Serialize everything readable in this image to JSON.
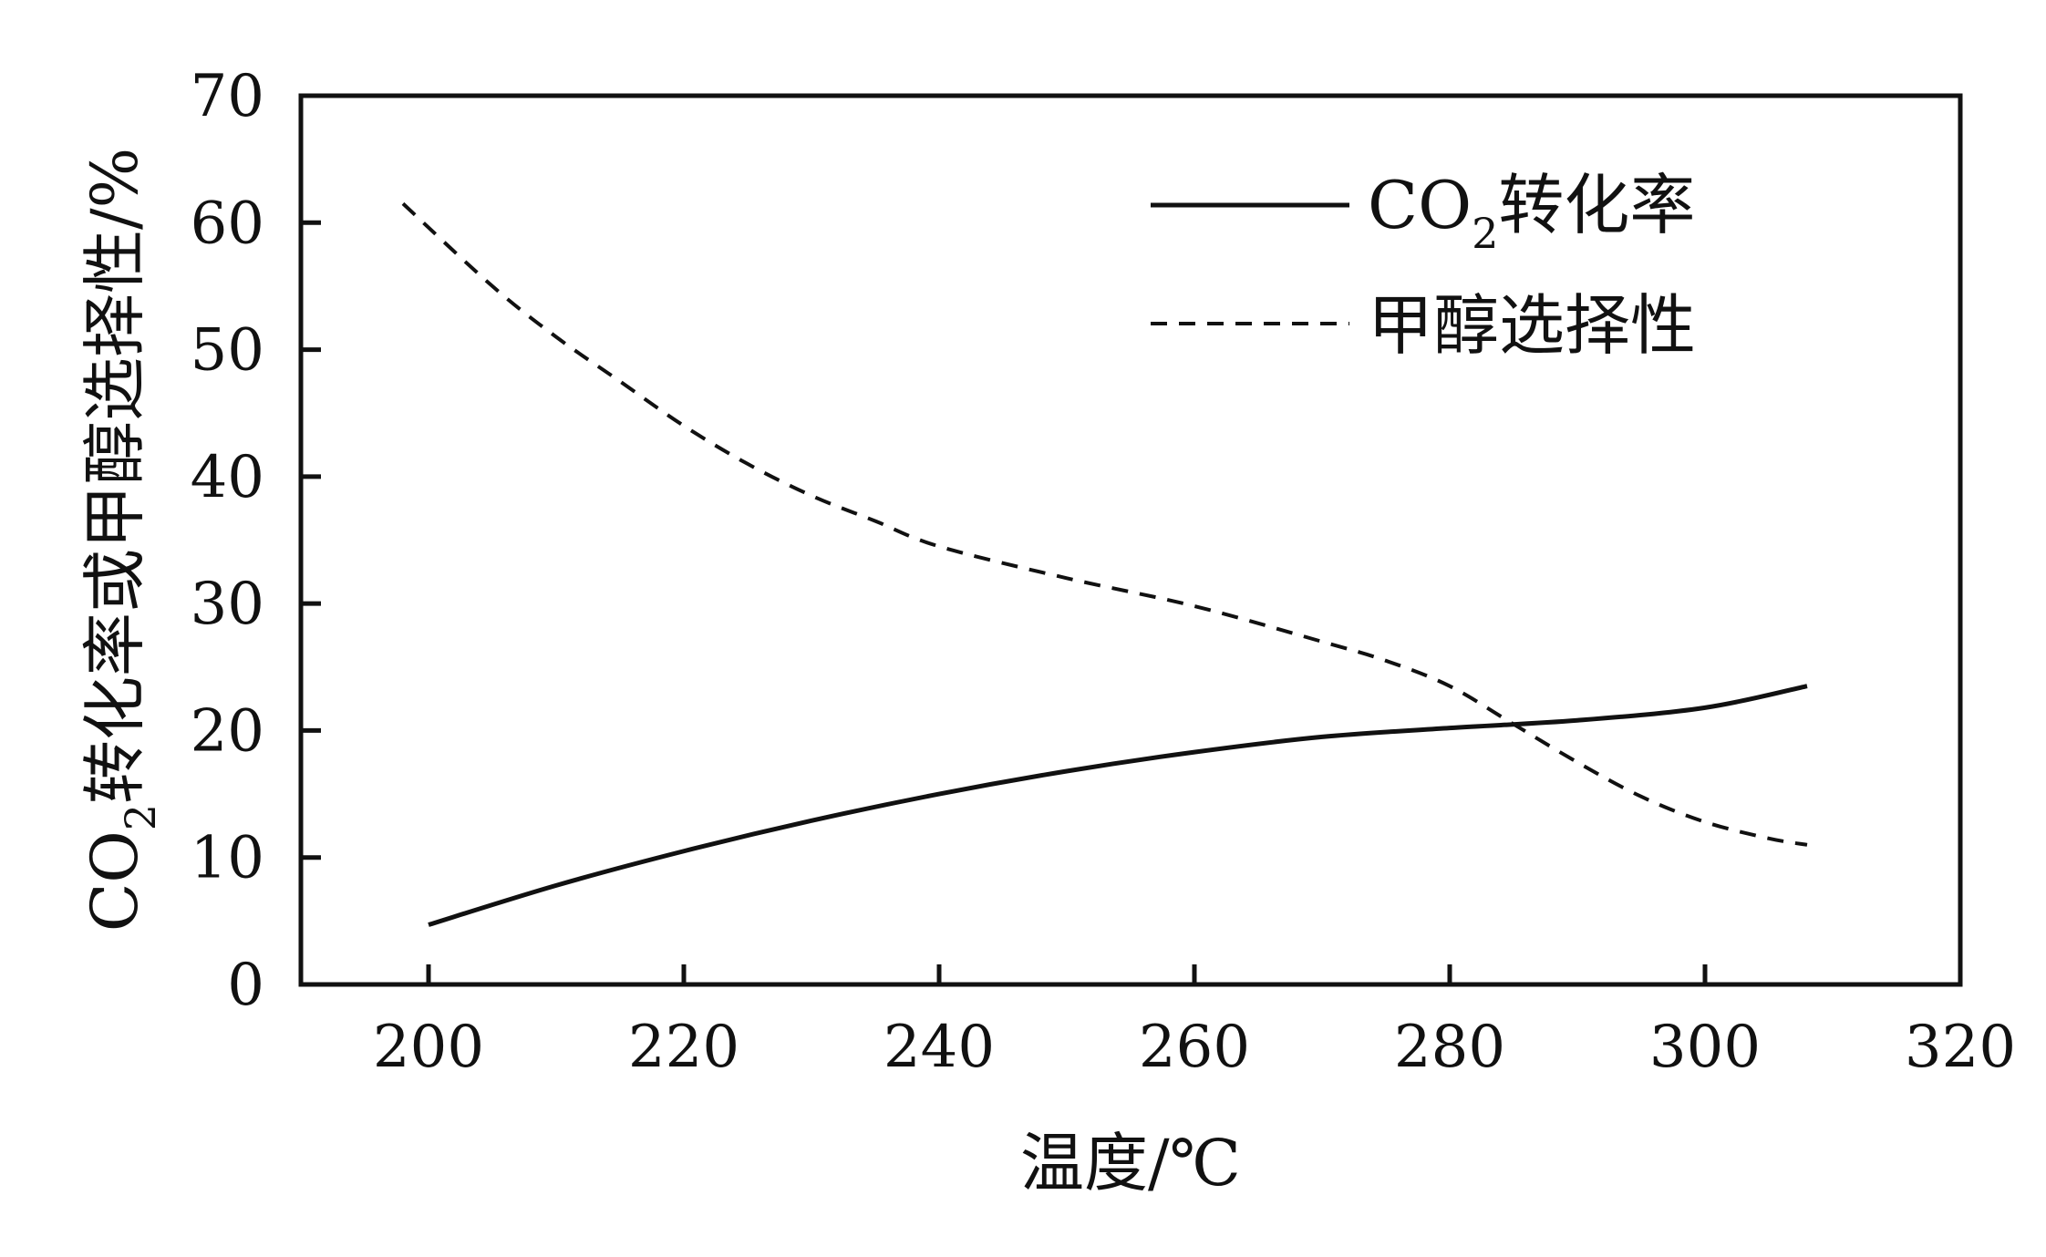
{
  "chart_data": {
    "type": "line",
    "xlabel": "温度/℃",
    "ylabel_main": "CO",
    "ylabel_sub": "2",
    "ylabel_rest": "转化率或甲醇选择性/%",
    "xlim": [
      190,
      320
    ],
    "ylim": [
      0,
      70
    ],
    "x_ticks": [
      200,
      220,
      240,
      260,
      280,
      300,
      320
    ],
    "y_ticks": [
      0,
      10,
      20,
      30,
      40,
      50,
      60,
      70
    ],
    "x_tick_labels": [
      "200",
      "220",
      "240",
      "260",
      "280",
      "300",
      "320"
    ],
    "y_tick_labels": [
      "0",
      "10",
      "20",
      "30",
      "40",
      "50",
      "60",
      "70"
    ],
    "grid": false,
    "legend_position": "top-right",
    "series": [
      {
        "name_main": "CO",
        "name_sub": "2",
        "name_rest": "转化率",
        "style": "solid",
        "x": [
          200,
          210,
          220,
          230,
          240,
          250,
          260,
          270,
          280,
          290,
          300,
          308
        ],
        "y": [
          4.7,
          7.8,
          10.5,
          12.9,
          15.0,
          16.8,
          18.3,
          19.5,
          20.2,
          20.8,
          21.8,
          23.5
        ]
      },
      {
        "name": "甲醇选择性",
        "style": "dashed",
        "x": [
          198,
          205,
          210,
          215,
          220,
          225,
          230,
          235,
          240,
          250,
          260,
          270,
          275,
          280,
          285,
          290,
          295,
          300,
          305,
          308
        ],
        "y": [
          61.5,
          55.0,
          51.0,
          47.5,
          44.0,
          41.0,
          38.5,
          36.5,
          34.5,
          32.0,
          29.8,
          27.0,
          25.5,
          23.5,
          20.5,
          17.5,
          14.8,
          12.8,
          11.5,
          11.0
        ]
      }
    ]
  }
}
